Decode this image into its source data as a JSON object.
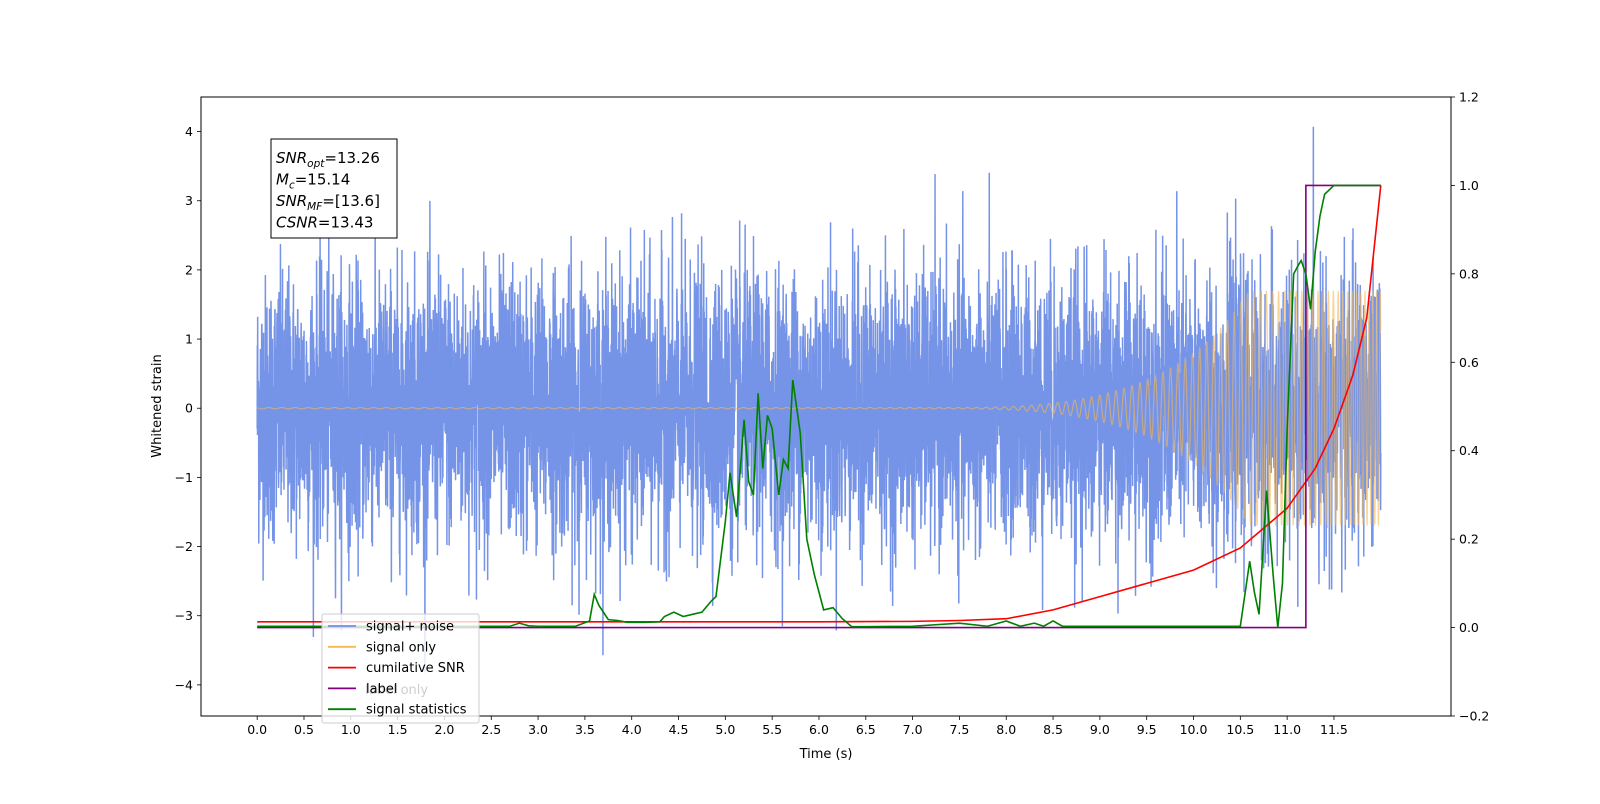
{
  "chart_data": {
    "type": "line",
    "xlabel": "Time (s)",
    "ylabel": "Whitened strain",
    "xlim": [
      -0.6,
      12.75
    ],
    "ylim": [
      -4.45,
      4.5
    ],
    "y2lim": [
      -0.2,
      1.2
    ],
    "x_ticks": [
      0.0,
      0.5,
      1.0,
      1.5,
      2.0,
      2.5,
      3.0,
      3.5,
      4.0,
      4.5,
      5.0,
      5.5,
      6.0,
      6.5,
      7.0,
      7.5,
      8.0,
      8.5,
      9.0,
      9.5,
      10.0,
      10.5,
      11.0,
      11.5
    ],
    "x_tick_labels": [
      "0.0",
      "0.5",
      "1.0",
      "1.5",
      "2.0",
      "2.5",
      "3.0",
      "3.5",
      "4.0",
      "4.5",
      "5.0",
      "5.5",
      "6.0",
      "6.5",
      "7.0",
      "7.5",
      "8.0",
      "8.5",
      "9.0",
      "9.5",
      "10.0",
      "10.5",
      "11.0",
      "11.5"
    ],
    "y_ticks": [
      -4,
      -3,
      -2,
      -1,
      0,
      1,
      2,
      3,
      4
    ],
    "y_tick_labels": [
      "−4",
      "−3",
      "−2",
      "−1",
      "0",
      "1",
      "2",
      "3",
      "4"
    ],
    "y2_ticks": [
      -0.2,
      0.0,
      0.2,
      0.4,
      0.6,
      0.8,
      1.0,
      1.2
    ],
    "y2_tick_labels": [
      "−0.2",
      "0.0",
      "0.2",
      "0.4",
      "0.6",
      "0.8",
      "1.0",
      "1.2"
    ],
    "grid": false,
    "legend_position": "bottom-left",
    "series": [
      {
        "name": "signal+ noise",
        "axis": "left",
        "color": "#6f8ee6",
        "x_range": [
          0.0,
          12.0
        ],
        "noise_std": 1.0,
        "note_range": [
          -4.0,
          4.1
        ]
      },
      {
        "name": "signal only",
        "axis": "left",
        "color": "#f7b84f",
        "x_range": [
          0.0,
          12.0
        ],
        "amplitude_start": 0.01,
        "amplitude_end": 1.7
      },
      {
        "name": "cumilative SNR",
        "axis": "right",
        "color": "#ff0000",
        "x": [
          0.0,
          2.0,
          4.0,
          6.0,
          7.0,
          7.5,
          8.0,
          8.5,
          9.0,
          9.5,
          10.0,
          10.5,
          11.0,
          11.3,
          11.5,
          11.7,
          11.85,
          12.0
        ],
        "y": [
          0.013,
          0.013,
          0.013,
          0.013,
          0.014,
          0.016,
          0.02,
          0.04,
          0.07,
          0.1,
          0.13,
          0.18,
          0.27,
          0.36,
          0.45,
          0.57,
          0.7,
          1.0
        ]
      },
      {
        "name": "label",
        "axis": "right",
        "color": "#800080",
        "x": [
          0.0,
          11.12,
          11.12,
          11.2,
          11.2,
          12.0
        ],
        "y": [
          0.0,
          0.0,
          0.0,
          0.0,
          1.0,
          1.0
        ]
      },
      {
        "name": "signal statistics",
        "axis": "right",
        "color": "#008000",
        "x": [
          0.0,
          2.7,
          2.8,
          2.9,
          3.0,
          3.4,
          3.55,
          3.6,
          3.65,
          3.75,
          3.85,
          3.95,
          4.05,
          4.15,
          4.3,
          4.35,
          4.45,
          4.55,
          4.65,
          4.75,
          4.85,
          4.9,
          5.0,
          5.05,
          5.12,
          5.2,
          5.25,
          5.3,
          5.35,
          5.4,
          5.45,
          5.5,
          5.57,
          5.62,
          5.67,
          5.72,
          5.8,
          5.87,
          5.95,
          6.05,
          6.15,
          6.25,
          6.35,
          6.5,
          7.0,
          7.5,
          7.8,
          8.0,
          8.15,
          8.3,
          8.4,
          8.5,
          8.6,
          10.5,
          10.6,
          10.65,
          10.7,
          10.78,
          10.85,
          10.9,
          10.95,
          11.0,
          11.07,
          11.12,
          11.15,
          11.2,
          11.25,
          11.3,
          11.35,
          11.4,
          11.5,
          11.6,
          11.7,
          11.8,
          12.0
        ],
        "y": [
          0.003,
          0.003,
          0.01,
          0.004,
          0.003,
          0.003,
          0.015,
          0.075,
          0.05,
          0.018,
          0.016,
          0.012,
          0.012,
          0.012,
          0.013,
          0.025,
          0.035,
          0.025,
          0.03,
          0.035,
          0.06,
          0.07,
          0.24,
          0.35,
          0.25,
          0.47,
          0.33,
          0.3,
          0.53,
          0.36,
          0.48,
          0.45,
          0.3,
          0.38,
          0.36,
          0.56,
          0.44,
          0.2,
          0.12,
          0.04,
          0.045,
          0.02,
          0.002,
          0.002,
          0.003,
          0.01,
          0.003,
          0.015,
          0.003,
          0.01,
          0.003,
          0.015,
          0.003,
          0.003,
          0.15,
          0.08,
          0.03,
          0.31,
          0.12,
          0.0,
          0.1,
          0.45,
          0.8,
          0.82,
          0.83,
          0.8,
          0.72,
          0.85,
          0.93,
          0.98,
          1.0,
          1.0,
          1.0,
          1.0,
          1.0
        ]
      }
    ],
    "legend_entries": [
      {
        "label": "signal+ noise",
        "color": "#6f8ee6"
      },
      {
        "label": "signal only",
        "color": "#f7b84f"
      },
      {
        "label": "cumilative SNR",
        "color": "#ff0000"
      },
      {
        "label": "label",
        "color": "#800080"
      },
      {
        "label": "signal statistics",
        "color": "#008000"
      }
    ],
    "legend_background_text": [
      "label only",
      "signal statistics"
    ],
    "annotation": {
      "lines": [
        {
          "sym": "SNR",
          "sub": "opt",
          "value": "=13.26"
        },
        {
          "sym": "M",
          "sub": "c",
          "value": "=15.14"
        },
        {
          "sym": "SNR",
          "sub": "MF",
          "value": "=[13.6]"
        },
        {
          "sym": "CSNR",
          "sub": "",
          "value": "=13.43"
        }
      ]
    }
  }
}
